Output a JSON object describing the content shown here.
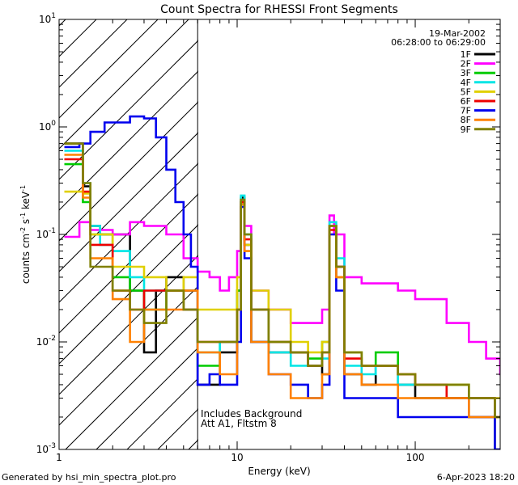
{
  "chart_data": {
    "type": "line",
    "title": "Count Spectra for RHESSI Front Segments",
    "xlabel": "Energy (keV)",
    "ylabel_parts": [
      "counts cm",
      "-2",
      " s",
      "-1",
      " keV",
      "-1"
    ],
    "xscale": "log",
    "yscale": "log",
    "xlim": [
      1,
      300
    ],
    "ylim": [
      0.001,
      10
    ],
    "x_tick_labels": [
      "1",
      "10",
      "100"
    ],
    "y_tick_labels": [
      {
        "base": "10",
        "exp": "-3",
        "value": 0.001
      },
      {
        "base": "10",
        "exp": "-2",
        "value": 0.01
      },
      {
        "base": "10",
        "exp": "-1",
        "value": 0.1
      },
      {
        "base": "10",
        "exp": "0",
        "value": 1
      },
      {
        "base": "10",
        "exp": "1",
        "value": 10
      }
    ],
    "date": "19-Mar-2002",
    "time_range": "06:28:00 to 06:29:00",
    "hatched_region_max_keV": 6,
    "annotation": [
      "Includes Background",
      "Att A1, Fltstm 8"
    ],
    "legend_placement": "top-right",
    "footer_left": "Generated by hsi_min_spectra_plot.pro",
    "footer_right": "6-Apr-2023 18:20",
    "series": [
      {
        "name": "1F",
        "color": "#000000",
        "points": [
          [
            1.07,
            0.7
          ],
          [
            1.36,
            0.28
          ],
          [
            1.5,
            0.12
          ],
          [
            1.7,
            0.1
          ],
          [
            2,
            0.1
          ],
          [
            2.5,
            0.03
          ],
          [
            3,
            0.008
          ],
          [
            3.5,
            0.03
          ],
          [
            4,
            0.04
          ],
          [
            5,
            0.03
          ],
          [
            6,
            0.004
          ],
          [
            8,
            0.008
          ],
          [
            10,
            0.03
          ],
          [
            10.5,
            0.22
          ],
          [
            11,
            0.08
          ],
          [
            12,
            0.01
          ],
          [
            15,
            0.008
          ],
          [
            20,
            0.008
          ],
          [
            25,
            0.006
          ],
          [
            30,
            0.005
          ],
          [
            33,
            0.12
          ],
          [
            36,
            0.05
          ],
          [
            40,
            0.005
          ],
          [
            50,
            0.004
          ],
          [
            60,
            0.006
          ],
          [
            80,
            0.004
          ],
          [
            100,
            0.003
          ],
          [
            150,
            0.003
          ],
          [
            200,
            0.002
          ],
          [
            280,
            0.001
          ]
        ]
      },
      {
        "name": "2F",
        "color": "#ff00ff",
        "points": [
          [
            1.07,
            0.095
          ],
          [
            1.3,
            0.13
          ],
          [
            1.5,
            0.11
          ],
          [
            2,
            0.1
          ],
          [
            2.5,
            0.13
          ],
          [
            3,
            0.12
          ],
          [
            4,
            0.1
          ],
          [
            5,
            0.06
          ],
          [
            6,
            0.045
          ],
          [
            7,
            0.04
          ],
          [
            8,
            0.03
          ],
          [
            9,
            0.04
          ],
          [
            10,
            0.07
          ],
          [
            10.5,
            0.2
          ],
          [
            11,
            0.12
          ],
          [
            12,
            0.03
          ],
          [
            15,
            0.02
          ],
          [
            20,
            0.015
          ],
          [
            25,
            0.015
          ],
          [
            30,
            0.02
          ],
          [
            33,
            0.15
          ],
          [
            35,
            0.1
          ],
          [
            40,
            0.04
          ],
          [
            50,
            0.035
          ],
          [
            60,
            0.035
          ],
          [
            80,
            0.03
          ],
          [
            100,
            0.025
          ],
          [
            150,
            0.015
          ],
          [
            200,
            0.01
          ],
          [
            250,
            0.007
          ],
          [
            300,
            0.005
          ]
        ]
      },
      {
        "name": "3F",
        "color": "#00cc00",
        "points": [
          [
            1.07,
            0.45
          ],
          [
            1.36,
            0.2
          ],
          [
            1.5,
            0.1
          ],
          [
            2,
            0.04
          ],
          [
            2.5,
            0.03
          ],
          [
            3,
            0.02
          ],
          [
            4,
            0.03
          ],
          [
            5,
            0.02
          ],
          [
            6,
            0.006
          ],
          [
            8,
            0.01
          ],
          [
            10,
            0.03
          ],
          [
            10.5,
            0.2
          ],
          [
            11,
            0.1
          ],
          [
            12,
            0.02
          ],
          [
            15,
            0.01
          ],
          [
            20,
            0.008
          ],
          [
            25,
            0.007
          ],
          [
            30,
            0.01
          ],
          [
            33,
            0.12
          ],
          [
            36,
            0.04
          ],
          [
            40,
            0.008
          ],
          [
            50,
            0.006
          ],
          [
            60,
            0.008
          ],
          [
            80,
            0.005
          ],
          [
            100,
            0.004
          ],
          [
            150,
            0.004
          ],
          [
            200,
            0.003
          ],
          [
            280,
            0.002
          ]
        ]
      },
      {
        "name": "4F",
        "color": "#00e5e5",
        "points": [
          [
            1.07,
            0.6
          ],
          [
            1.36,
            0.3
          ],
          [
            1.5,
            0.12
          ],
          [
            1.7,
            0.08
          ],
          [
            2,
            0.07
          ],
          [
            2.5,
            0.04
          ],
          [
            3,
            0.03
          ],
          [
            4,
            0.03
          ],
          [
            5,
            0.02
          ],
          [
            6,
            0.008
          ],
          [
            8,
            0.01
          ],
          [
            10,
            0.02
          ],
          [
            10.5,
            0.23
          ],
          [
            11,
            0.1
          ],
          [
            12,
            0.01
          ],
          [
            15,
            0.008
          ],
          [
            20,
            0.006
          ],
          [
            25,
            0.006
          ],
          [
            30,
            0.007
          ],
          [
            33,
            0.13
          ],
          [
            36,
            0.06
          ],
          [
            40,
            0.006
          ],
          [
            50,
            0.005
          ],
          [
            60,
            0.006
          ],
          [
            80,
            0.004
          ],
          [
            100,
            0.004
          ],
          [
            150,
            0.003
          ],
          [
            200,
            0.003
          ],
          [
            280,
            0.002
          ]
        ]
      },
      {
        "name": "5F",
        "color": "#e0d000",
        "points": [
          [
            1.07,
            0.25
          ],
          [
            1.36,
            0.24
          ],
          [
            1.5,
            0.1
          ],
          [
            2,
            0.05
          ],
          [
            2.5,
            0.05
          ],
          [
            3,
            0.04
          ],
          [
            4,
            0.03
          ],
          [
            5,
            0.04
          ],
          [
            6,
            0.02
          ],
          [
            8,
            0.02
          ],
          [
            10,
            0.04
          ],
          [
            10.5,
            0.18
          ],
          [
            11,
            0.08
          ],
          [
            12,
            0.03
          ],
          [
            15,
            0.02
          ],
          [
            20,
            0.01
          ],
          [
            25,
            0.008
          ],
          [
            30,
            0.01
          ],
          [
            33,
            0.1
          ],
          [
            36,
            0.04
          ],
          [
            40,
            0.008
          ],
          [
            50,
            0.006
          ],
          [
            60,
            0.006
          ],
          [
            80,
            0.005
          ],
          [
            100,
            0.004
          ],
          [
            150,
            0.004
          ],
          [
            200,
            0.003
          ],
          [
            280,
            0.003
          ]
        ]
      },
      {
        "name": "6F",
        "color": "#ee0000",
        "points": [
          [
            1.07,
            0.5
          ],
          [
            1.36,
            0.25
          ],
          [
            1.5,
            0.08
          ],
          [
            2,
            0.03
          ],
          [
            2.5,
            0.02
          ],
          [
            3,
            0.03
          ],
          [
            4,
            0.03
          ],
          [
            5,
            0.02
          ],
          [
            6,
            0.01
          ],
          [
            8,
            0.01
          ],
          [
            10,
            0.02
          ],
          [
            10.5,
            0.2
          ],
          [
            11,
            0.09
          ],
          [
            12,
            0.02
          ],
          [
            15,
            0.01
          ],
          [
            20,
            0.008
          ],
          [
            25,
            0.006
          ],
          [
            30,
            0.008
          ],
          [
            33,
            0.11
          ],
          [
            36,
            0.05
          ],
          [
            40,
            0.007
          ],
          [
            50,
            0.006
          ],
          [
            60,
            0.006
          ],
          [
            80,
            0.005
          ],
          [
            100,
            0.004
          ],
          [
            150,
            0.003
          ],
          [
            200,
            0.003
          ],
          [
            280,
            0.002
          ]
        ]
      },
      {
        "name": "7F",
        "color": "#0000ee",
        "points": [
          [
            1.07,
            0.65
          ],
          [
            1.3,
            0.7
          ],
          [
            1.5,
            0.9
          ],
          [
            1.8,
            1.1
          ],
          [
            2.1,
            1.1
          ],
          [
            2.5,
            1.25
          ],
          [
            3,
            1.2
          ],
          [
            3.5,
            0.8
          ],
          [
            4,
            0.4
          ],
          [
            4.5,
            0.2
          ],
          [
            5,
            0.1
          ],
          [
            5.5,
            0.05
          ],
          [
            6,
            0.004
          ],
          [
            7,
            0.005
          ],
          [
            8,
            0.004
          ],
          [
            10,
            0.01
          ],
          [
            10.5,
            0.18
          ],
          [
            11,
            0.06
          ],
          [
            12,
            0.01
          ],
          [
            15,
            0.005
          ],
          [
            20,
            0.004
          ],
          [
            25,
            0.003
          ],
          [
            30,
            0.004
          ],
          [
            33,
            0.1
          ],
          [
            36,
            0.03
          ],
          [
            40,
            0.003
          ],
          [
            50,
            0.003
          ],
          [
            60,
            0.003
          ],
          [
            80,
            0.002
          ],
          [
            100,
            0.002
          ],
          [
            150,
            0.002
          ],
          [
            200,
            0.002
          ],
          [
            280,
            0.001
          ]
        ]
      },
      {
        "name": "8F",
        "color": "#ff8000",
        "points": [
          [
            1.07,
            0.55
          ],
          [
            1.36,
            0.22
          ],
          [
            1.5,
            0.06
          ],
          [
            2,
            0.025
          ],
          [
            2.5,
            0.01
          ],
          [
            3,
            0.02
          ],
          [
            4,
            0.02
          ],
          [
            5,
            0.03
          ],
          [
            6,
            0.008
          ],
          [
            8,
            0.005
          ],
          [
            10,
            0.02
          ],
          [
            10.5,
            0.19
          ],
          [
            11,
            0.07
          ],
          [
            12,
            0.01
          ],
          [
            15,
            0.005
          ],
          [
            20,
            0.003
          ],
          [
            25,
            0.003
          ],
          [
            30,
            0.005
          ],
          [
            33,
            0.12
          ],
          [
            36,
            0.04
          ],
          [
            40,
            0.005
          ],
          [
            50,
            0.004
          ],
          [
            60,
            0.004
          ],
          [
            80,
            0.003
          ],
          [
            100,
            0.003
          ],
          [
            150,
            0.003
          ],
          [
            200,
            0.002
          ],
          [
            280,
            0.002
          ]
        ]
      },
      {
        "name": "9F",
        "color": "#808000",
        "points": [
          [
            1.07,
            0.7
          ],
          [
            1.36,
            0.3
          ],
          [
            1.5,
            0.05
          ],
          [
            2,
            0.03
          ],
          [
            2.5,
            0.02
          ],
          [
            3,
            0.015
          ],
          [
            4,
            0.03
          ],
          [
            5,
            0.02
          ],
          [
            6,
            0.01
          ],
          [
            8,
            0.01
          ],
          [
            10,
            0.02
          ],
          [
            10.5,
            0.21
          ],
          [
            11,
            0.1
          ],
          [
            12,
            0.02
          ],
          [
            15,
            0.01
          ],
          [
            20,
            0.008
          ],
          [
            25,
            0.006
          ],
          [
            30,
            0.008
          ],
          [
            33,
            0.12
          ],
          [
            36,
            0.05
          ],
          [
            40,
            0.008
          ],
          [
            50,
            0.006
          ],
          [
            60,
            0.006
          ],
          [
            80,
            0.005
          ],
          [
            100,
            0.004
          ],
          [
            150,
            0.004
          ],
          [
            200,
            0.003
          ],
          [
            280,
            0.002
          ]
        ]
      }
    ]
  }
}
